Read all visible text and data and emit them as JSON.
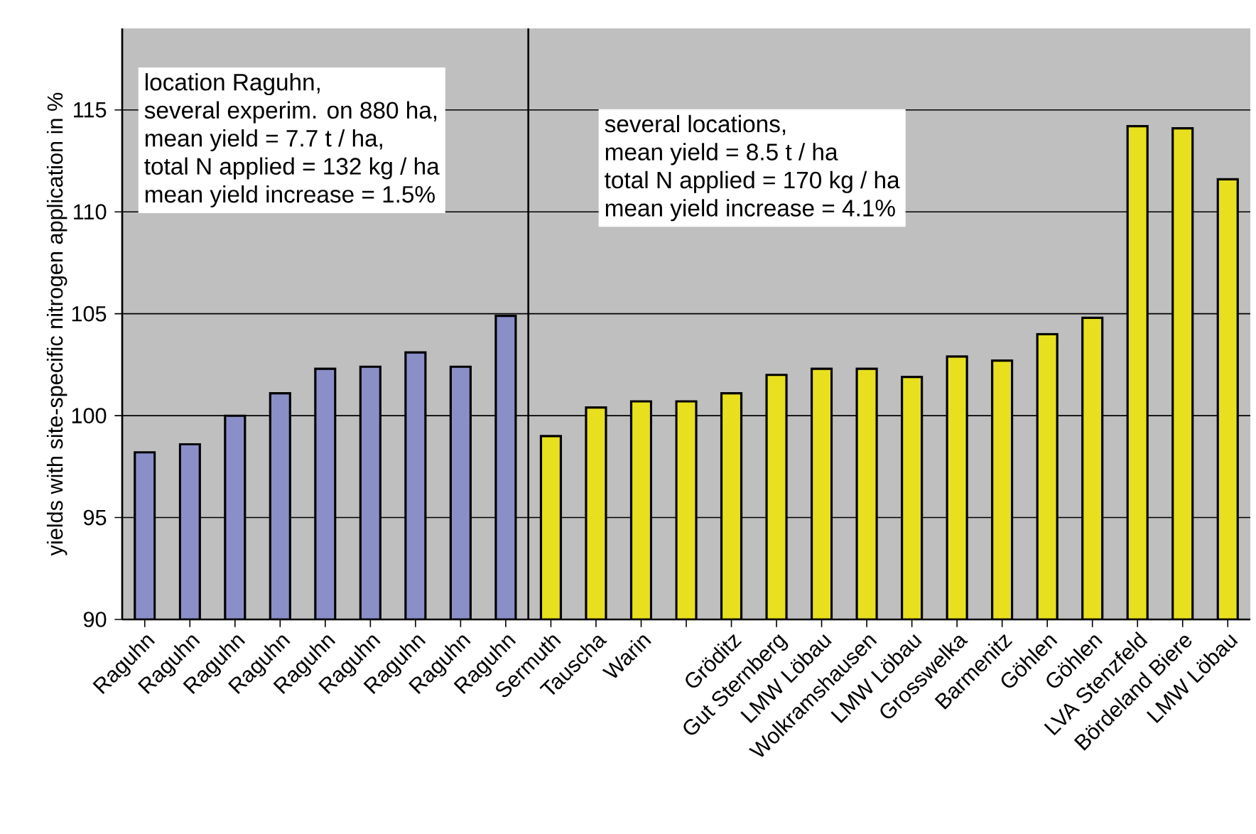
{
  "chart_data": [
    {
      "type": "bar",
      "ylabel": "yields with site-specific nitrogen application in %",
      "categories": [
        "Raguhn",
        "Raguhn",
        "Raguhn",
        "Raguhn",
        "Raguhn",
        "Raguhn",
        "Raguhn",
        "Raguhn",
        "Raguhn"
      ],
      "values": [
        98.2,
        98.6,
        100.0,
        101.1,
        102.3,
        102.4,
        103.1,
        102.4,
        104.9
      ],
      "color": "#8b8fc8",
      "ylim": [
        90,
        119
      ],
      "yticks": [
        90,
        95,
        100,
        105,
        110,
        115
      ],
      "grid": "y",
      "annotations": [
        "location Raguhn,",
        "several experim. on 880 ha,",
        "mean yield = 7.7 t / ha,",
        "total N applied = 132 kg / ha",
        "mean yield increase = 1.5%"
      ]
    },
    {
      "type": "bar",
      "categories": [
        "Sermuth",
        "Tauscha",
        "Warin",
        null,
        "Gröditz",
        "Gut Sternberg",
        "LMW Löbau",
        "Wolkramshausen",
        "LMW Löbau",
        "Grosswelka",
        "Barmenitz",
        "Göhlen",
        "Göhlen",
        "LVA Stenzfeld",
        "Bördeland Biere",
        "LMW Löbau"
      ],
      "values": [
        99.0,
        100.4,
        100.7,
        100.7,
        101.1,
        102.0,
        102.3,
        102.3,
        101.9,
        102.9,
        102.7,
        104.0,
        104.8,
        114.2,
        114.1,
        111.6
      ],
      "color": "#e8e01e",
      "ylim": [
        90,
        119
      ],
      "yticks": [
        90,
        95,
        100,
        105,
        110,
        115
      ],
      "grid": "y",
      "tick_labels": "x",
      "annotations": [
        "several locations,",
        "mean yield = 8.5 t / ha",
        "total N applied = 170 kg / ha",
        "mean yield increase = 4.1%"
      ]
    }
  ]
}
